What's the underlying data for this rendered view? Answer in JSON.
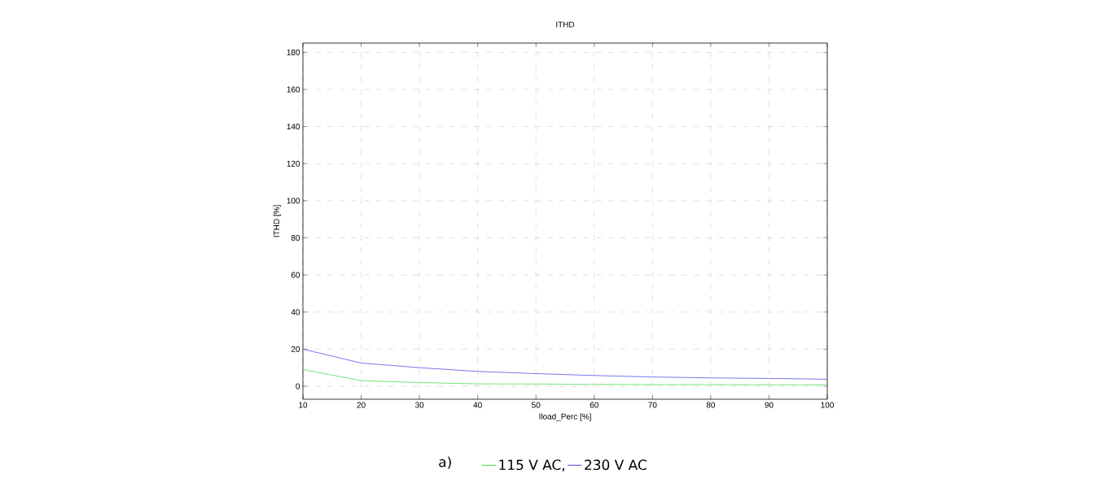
{
  "chart_data": {
    "type": "line",
    "title": "ITHD",
    "xlabel": "Iload_Perc [%]",
    "ylabel": "ITHD [%]",
    "x": [
      10,
      20,
      30,
      40,
      50,
      60,
      70,
      80,
      90,
      100
    ],
    "series": [
      {
        "name": "115 V AC,",
        "color": "#66e066",
        "values": [
          9,
          3,
          2,
          1.3,
          1.2,
          1,
          0.9,
          0.9,
          0.8,
          0.8
        ]
      },
      {
        "name": "230 V AC",
        "color": "#6666ee",
        "values": [
          20,
          12.5,
          10,
          8,
          6.8,
          5.8,
          5,
          4.5,
          4.2,
          3.8
        ]
      }
    ],
    "annotations": [
      "a)"
    ],
    "xlim": [
      10,
      100
    ],
    "xticks": [
      10,
      20,
      30,
      40,
      50,
      60,
      70,
      80,
      90,
      100
    ],
    "ylim": [
      -7,
      185
    ],
    "yticks": [
      0,
      20,
      40,
      60,
      80,
      100,
      120,
      140,
      160,
      180
    ],
    "grid": true,
    "legend": "bottom",
    "marker": "none",
    "line_style": "solid"
  }
}
